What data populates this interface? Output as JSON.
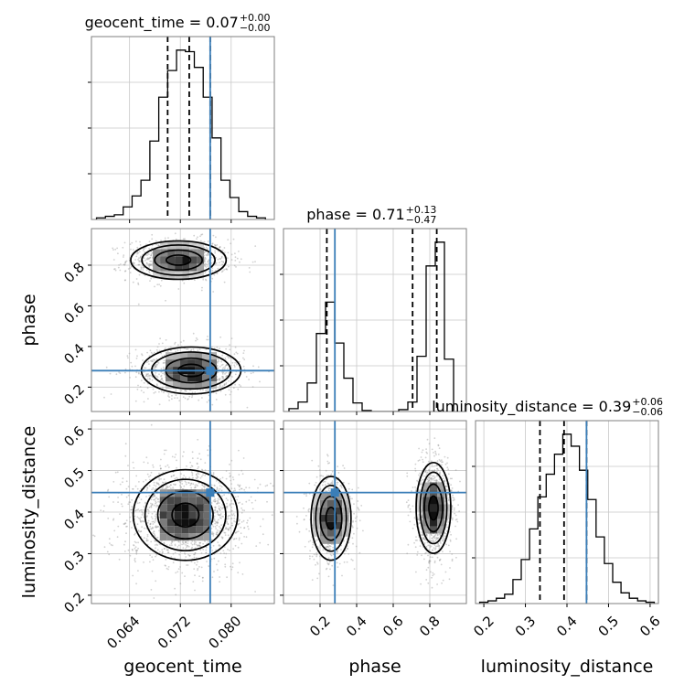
{
  "colors": {
    "truth": "#3a7eb8",
    "hist": "#000000",
    "grid": "#c8c8c8",
    "points": "#9a9a9a"
  },
  "chart_data": {
    "type": "corner",
    "parameters": [
      "geocent_time",
      "phase",
      "luminosity_distance"
    ],
    "truths": {
      "geocent_time": 0.0767,
      "phase": 0.281,
      "luminosity_distance": 0.447
    },
    "diagonal": [
      {
        "parameter": "geocent_time",
        "title": {
          "prefix": "geocent_time = ",
          "value": "0.07",
          "upper": "+0.00",
          "lower": "−0.00"
        },
        "xlim": [
          0.058,
          0.0868
        ],
        "x_ticks": [
          "0.064",
          "0.072",
          "0.080"
        ],
        "quantiles": [
          0.07,
          0.0734,
          0.0767
        ],
        "truth": 0.0767,
        "bin_edges": [
          0.0588,
          0.0602,
          0.0616,
          0.063,
          0.0644,
          0.0658,
          0.0672,
          0.0686,
          0.07,
          0.0714,
          0.0728,
          0.0742,
          0.0756,
          0.077,
          0.0784,
          0.0798,
          0.0812,
          0.0826,
          0.084,
          0.0854
        ],
        "counts": [
          1,
          2,
          3,
          8,
          15,
          25,
          50,
          78,
          95,
          108,
          107,
          97,
          78,
          52,
          25,
          14,
          5,
          2,
          1
        ]
      },
      {
        "parameter": "phase",
        "title": {
          "prefix": "phase = ",
          "value": "0.71",
          "upper": "+0.13",
          "lower": "−0.47"
        },
        "xlim": [
          0.0,
          1.0
        ],
        "x_ticks": [
          "0.2",
          "0.4",
          "0.6",
          "0.8"
        ],
        "quantiles": [
          0.237,
          0.706,
          0.838
        ],
        "truth": 0.281,
        "bin_edges": [
          0.03,
          0.08,
          0.13,
          0.18,
          0.23,
          0.28,
          0.33,
          0.38,
          0.43,
          0.48,
          0.53,
          0.58,
          0.63,
          0.68,
          0.73,
          0.78,
          0.83,
          0.88,
          0.93
        ],
        "counts": [
          3,
          10,
          30,
          82,
          115,
          72,
          35,
          9,
          1,
          0,
          0,
          0,
          2,
          10,
          58,
          153,
          178,
          55
        ]
      },
      {
        "parameter": "luminosity_distance",
        "title": {
          "prefix": "luminosity_distance = ",
          "value": "0.39",
          "upper": "+0.06",
          "lower": "−0.06"
        },
        "xlim": [
          0.18,
          0.62
        ],
        "x_ticks": [
          "0.2",
          "0.3",
          "0.4",
          "0.5",
          "0.6"
        ],
        "quantiles": [
          0.335,
          0.393,
          0.447
        ],
        "truth": 0.447,
        "bin_edges": [
          0.19,
          0.21,
          0.23,
          0.25,
          0.27,
          0.29,
          0.31,
          0.33,
          0.35,
          0.37,
          0.39,
          0.41,
          0.43,
          0.45,
          0.47,
          0.49,
          0.51,
          0.53,
          0.55,
          0.57,
          0.59,
          0.61
        ],
        "counts": [
          1,
          2,
          4,
          7,
          18,
          33,
          56,
          80,
          97,
          112,
          127,
          118,
          100,
          78,
          50,
          30,
          16,
          8,
          4,
          2,
          1
        ]
      }
    ],
    "pairs": [
      {
        "x": "geocent_time",
        "y": "phase",
        "xlim": [
          0.058,
          0.0868
        ],
        "ylim": [
          0.08,
          0.98
        ],
        "y_ticks": [
          "0.2",
          "0.4",
          "0.6",
          "0.8"
        ],
        "modes": [
          {
            "center": [
              0.0717,
              0.825
            ],
            "sigma": [
              0.0035,
              0.045
            ],
            "weight": 0.5
          },
          {
            "center": [
              0.0737,
              0.282
            ],
            "sigma": [
              0.0037,
              0.055
            ],
            "weight": 0.5
          }
        ]
      },
      {
        "x": "geocent_time",
        "y": "luminosity_distance",
        "xlim": [
          0.058,
          0.0868
        ],
        "ylim": [
          0.18,
          0.62
        ],
        "y_ticks": [
          "0.2",
          "0.3",
          "0.4",
          "0.5",
          "0.6"
        ],
        "modes": [
          {
            "center": [
              0.0728,
              0.393
            ],
            "sigma": [
              0.004,
              0.052
            ],
            "weight": 1.0
          }
        ]
      },
      {
        "x": "phase",
        "y": "luminosity_distance",
        "xlim": [
          0.0,
          1.0
        ],
        "ylim": [
          0.18,
          0.62
        ],
        "modes": [
          {
            "center": [
              0.26,
              0.385
            ],
            "sigma": [
              0.052,
              0.048
            ],
            "weight": 0.4
          },
          {
            "center": [
              0.82,
              0.41
            ],
            "sigma": [
              0.045,
              0.052
            ],
            "weight": 0.6
          }
        ]
      }
    ],
    "axis_labels": {
      "x": [
        "geocent_time",
        "phase",
        "luminosity_distance"
      ],
      "y": [
        "phase",
        "luminosity_distance"
      ]
    }
  }
}
